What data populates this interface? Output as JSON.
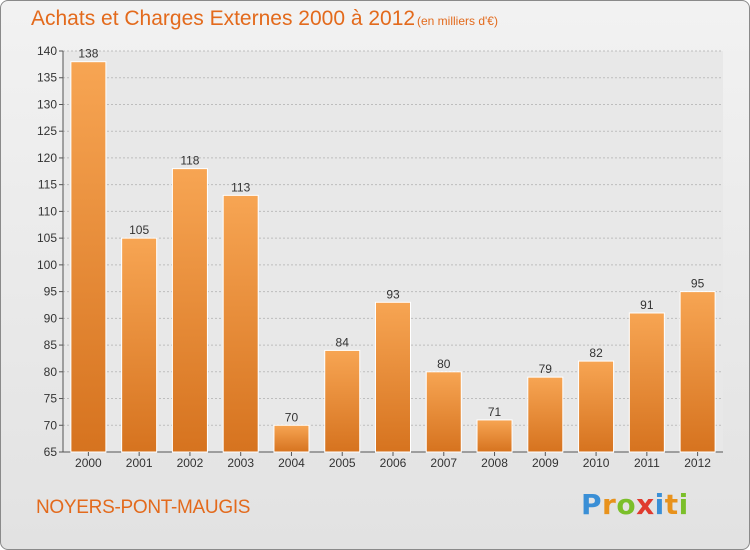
{
  "chart_data": {
    "type": "bar",
    "title": "Achats et Charges Externes 2000 à 2012",
    "subtitle": "(en milliers d'€)",
    "categories": [
      "2000",
      "2001",
      "2002",
      "2003",
      "2004",
      "2005",
      "2006",
      "2007",
      "2008",
      "2009",
      "2010",
      "2011",
      "2012"
    ],
    "values": [
      138,
      105,
      118,
      113,
      70,
      84,
      93,
      80,
      71,
      79,
      82,
      91,
      95
    ],
    "ylim": [
      65,
      140
    ],
    "yticks": [
      65,
      70,
      75,
      80,
      85,
      90,
      95,
      100,
      105,
      110,
      115,
      120,
      125,
      130,
      135,
      140
    ],
    "grid": true,
    "xlabel": "",
    "ylabel": "",
    "colors": {
      "bar_light": "#f7a553",
      "bar_dark": "#d6731f",
      "title": "#e36a1c"
    }
  },
  "place_name": "NOYERS-PONT-MAUGIS",
  "logo": {
    "letters": [
      "P",
      "r",
      "o",
      "x",
      "i",
      "t",
      "i"
    ],
    "colors": [
      "#3a8fd6",
      "#e8921c",
      "#7bbf2a",
      "#e03a2e",
      "#3a8fd6",
      "#e8921c",
      "#7bbf2a"
    ]
  }
}
